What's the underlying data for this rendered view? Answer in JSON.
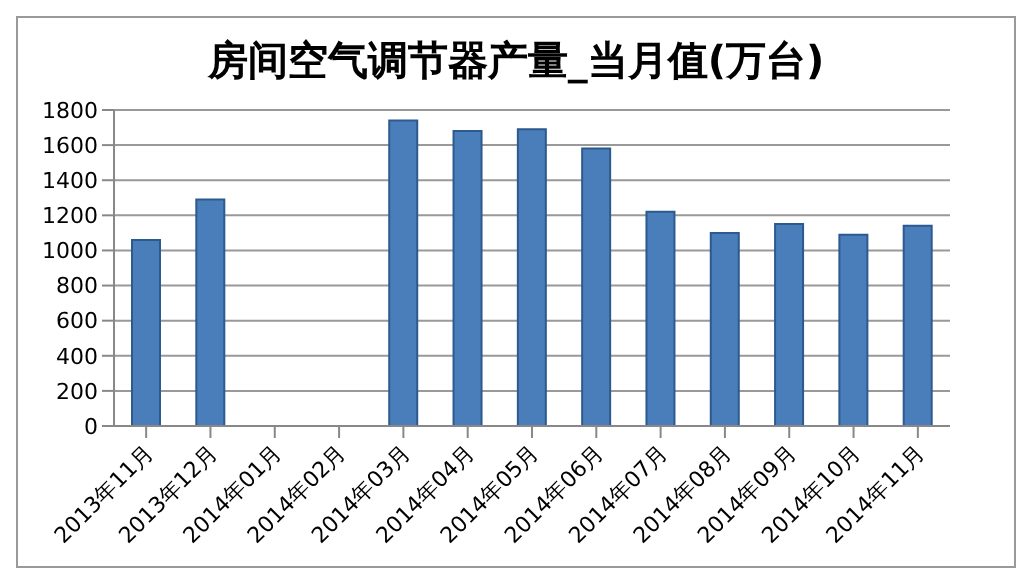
{
  "chart_data": {
    "type": "bar",
    "title": "房间空气调节器产量_当月值(万台)",
    "categories": [
      "2013年11月",
      "2013年12月",
      "2014年01月",
      "2014年02月",
      "2014年03月",
      "2014年04月",
      "2014年05月",
      "2014年06月",
      "2014年07月",
      "2014年08月",
      "2014年09月",
      "2014年10月",
      "2014年11月"
    ],
    "values": [
      1060,
      1290,
      null,
      null,
      1740,
      1680,
      1690,
      1580,
      1220,
      1100,
      1150,
      1090,
      1140
    ],
    "color": "#4a7ebb",
    "ylim": [
      0,
      1800
    ],
    "yticks": [
      0,
      200,
      400,
      600,
      800,
      1000,
      1200,
      1400,
      1600,
      1800
    ],
    "grid": "y"
  }
}
